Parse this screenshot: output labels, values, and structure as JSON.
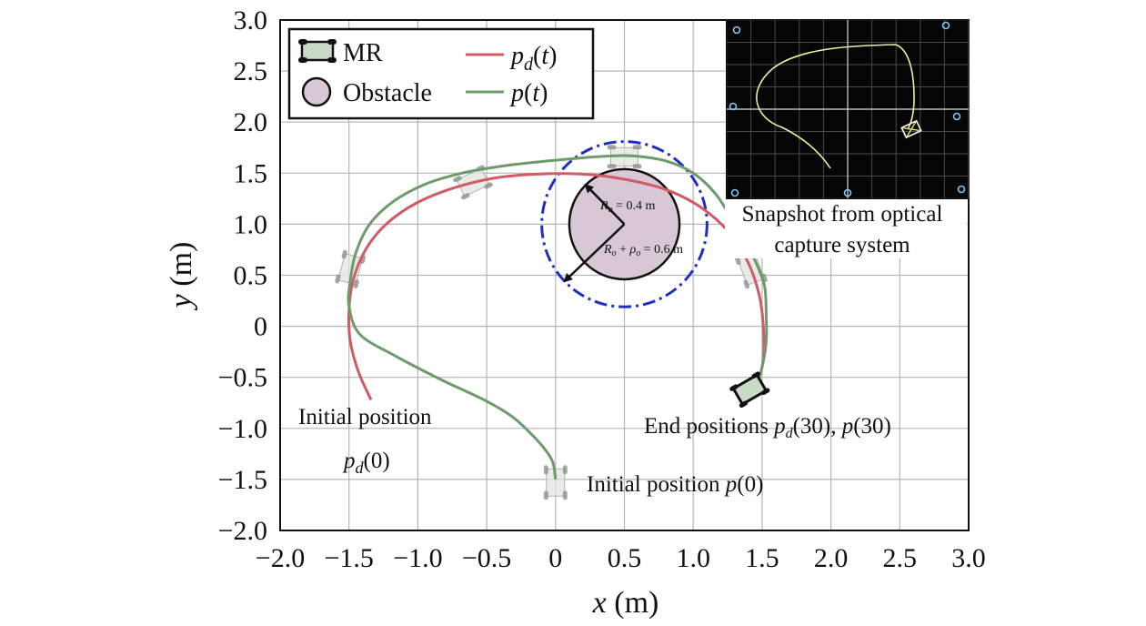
{
  "chart_data": {
    "type": "line",
    "xlabel": "x (m)",
    "ylabel": "y (m)",
    "xlim": [
      -2.0,
      3.0
    ],
    "ylim": [
      -2.0,
      3.0
    ],
    "grid": true,
    "legend_placement": "top-left",
    "x_ticks": [
      "−2.0",
      "−1.0",
      "−0.5",
      "0",
      "0.5",
      "1.0",
      "1.5",
      "2.0",
      "2.5",
      "3.0"
    ],
    "x_tick_values": [
      -2.0,
      -1.0,
      -0.5,
      0,
      0.5,
      1.0,
      1.5,
      2.0,
      2.5,
      3.0
    ],
    "x_tick_extra_label": "−1.5",
    "y_ticks": [
      "3.0",
      "2.5",
      "2.0",
      "1.5",
      "1.0",
      "0.5",
      "0",
      "−0.5",
      "−1.0",
      "−1.5",
      "−2.0"
    ],
    "y_tick_values": [
      3.0,
      2.5,
      2.0,
      1.5,
      1.0,
      0.5,
      0,
      -0.5,
      -1.0,
      -1.5,
      -2.0
    ],
    "legend": {
      "mr": "MR",
      "obstacle": "Obstacle",
      "pd": "p_d(t)",
      "p": "p(t)"
    },
    "series": [
      {
        "name": "p_d(t)",
        "color": "#d05a66",
        "x": [
          -1.34,
          -1.43,
          -1.49,
          -1.5,
          -1.47,
          -1.38,
          -1.23,
          -1.02,
          -0.75,
          -0.45,
          -0.14,
          0.2,
          0.5,
          0.8,
          1.05,
          1.26,
          1.4,
          1.48,
          1.51,
          1.51,
          1.48,
          1.42
        ],
        "y": [
          -0.72,
          -0.45,
          -0.15,
          0.15,
          0.45,
          0.75,
          1.0,
          1.2,
          1.35,
          1.45,
          1.49,
          1.49,
          1.44,
          1.34,
          1.17,
          0.92,
          0.62,
          0.3,
          -0.02,
          -0.3,
          -0.5,
          -0.65
        ]
      },
      {
        "name": "p(t)",
        "color": "#6e9a6b",
        "x": [
          0.0,
          -0.02,
          -0.08,
          -0.18,
          -0.32,
          -0.52,
          -0.82,
          -1.15,
          -1.42,
          -1.5,
          -1.49,
          -1.45,
          -1.35,
          -1.18,
          -0.95,
          -0.68,
          -0.38,
          -0.05,
          0.3,
          0.55,
          0.8,
          1.0,
          1.16,
          1.28,
          1.39,
          1.47,
          1.52,
          1.53,
          1.53,
          1.5,
          1.45
        ],
        "y": [
          -1.5,
          -1.33,
          -1.2,
          -1.05,
          -0.88,
          -0.72,
          -0.53,
          -0.3,
          -0.08,
          0.2,
          0.45,
          0.72,
          1.0,
          1.22,
          1.39,
          1.5,
          1.57,
          1.62,
          1.66,
          1.67,
          1.62,
          1.5,
          1.3,
          1.05,
          0.8,
          0.58,
          0.38,
          0.1,
          -0.15,
          -0.4,
          -0.62
        ]
      }
    ],
    "obstacle": {
      "center": [
        0.5,
        1.0
      ],
      "radius": 0.4,
      "safety_radius": 0.6,
      "label_r": "R_o = 0.4 m",
      "label_r_full": "R_o + ρ_o = 0.6 m"
    },
    "robot_snapshots": [
      {
        "x": -1.49,
        "y": 0.56,
        "angle_deg": -75
      },
      {
        "x": -0.6,
        "y": 1.41,
        "angle_deg": -25
      },
      {
        "x": 0.5,
        "y": 1.66,
        "angle_deg": 0
      },
      {
        "x": 1.42,
        "y": 0.56,
        "angle_deg": 70
      },
      {
        "x": 0.0,
        "y": -1.53,
        "angle_deg": 90
      }
    ],
    "robot_end": {
      "x": 1.41,
      "y": -0.62,
      "angle_deg": 60
    },
    "annotations": {
      "initial_pd_line1": "Initial position",
      "initial_pd_line2": "p_d(0)",
      "initial_p": "Initial position p(0)",
      "end_positions": "End positions p_d(30), p(30)",
      "snapshot_line1": "Snapshot from optical",
      "snapshot_line2": "capture system"
    },
    "colors": {
      "pd": "#d05a66",
      "p": "#6e9a6b",
      "safety_circle": "#1f2fbf",
      "obstacle_fill": "#d8c8d6",
      "robot_fill": "#c9dbc7",
      "inset_bg": "#050505",
      "inset_grid": "#4a4a4a",
      "inset_path": "#e8f3a0",
      "inset_marker": "#7fc8ff"
    }
  }
}
